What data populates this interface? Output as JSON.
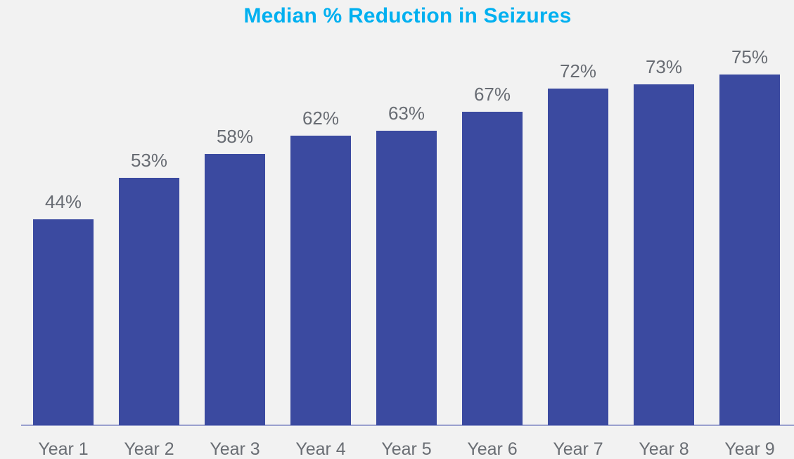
{
  "chart_data": {
    "type": "bar",
    "title": "Median % Reduction in Seizures",
    "categories": [
      "Year 1",
      "Year 2",
      "Year 3",
      "Year 4",
      "Year 5",
      "Year 6",
      "Year 7",
      "Year 8",
      "Year 9"
    ],
    "values": [
      44,
      53,
      58,
      62,
      63,
      67,
      72,
      73,
      75
    ],
    "value_labels": [
      "44%",
      "53%",
      "58%",
      "62%",
      "63%",
      "67%",
      "72%",
      "73%",
      "75%"
    ],
    "xlabel": "",
    "ylabel": "",
    "ylim": [
      0,
      80
    ],
    "grid": false,
    "legend": "none",
    "colors": {
      "background": "#F2F2F2",
      "bar": "#3B4AA0",
      "title": "#00B0F0",
      "data_label": "#686C73",
      "axis_label": "#6A6E74",
      "axis_line": "#9AA0CE"
    }
  }
}
